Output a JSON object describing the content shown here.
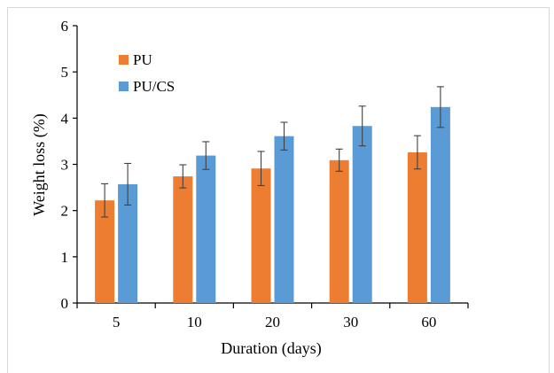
{
  "chart_data": {
    "type": "bar",
    "title": "",
    "xlabel": "Duration (days)",
    "ylabel": "Weight loss (%)",
    "categories": [
      "5",
      "10",
      "20",
      "30",
      "60"
    ],
    "ylim": [
      0,
      6
    ],
    "yticks": [
      "0",
      "1",
      "2",
      "3",
      "4",
      "5",
      "6"
    ],
    "grid": false,
    "legend_placement": "top-left",
    "series": [
      {
        "name": "PU",
        "color": "#ED7D31",
        "values": [
          2.22,
          2.74,
          2.91,
          3.09,
          3.26
        ],
        "errors": [
          0.36,
          0.25,
          0.37,
          0.24,
          0.36
        ]
      },
      {
        "name": "PU/CS",
        "color": "#5B9BD5",
        "values": [
          2.57,
          3.19,
          3.61,
          3.83,
          4.24
        ],
        "errors": [
          0.45,
          0.3,
          0.3,
          0.43,
          0.44
        ]
      }
    ]
  }
}
